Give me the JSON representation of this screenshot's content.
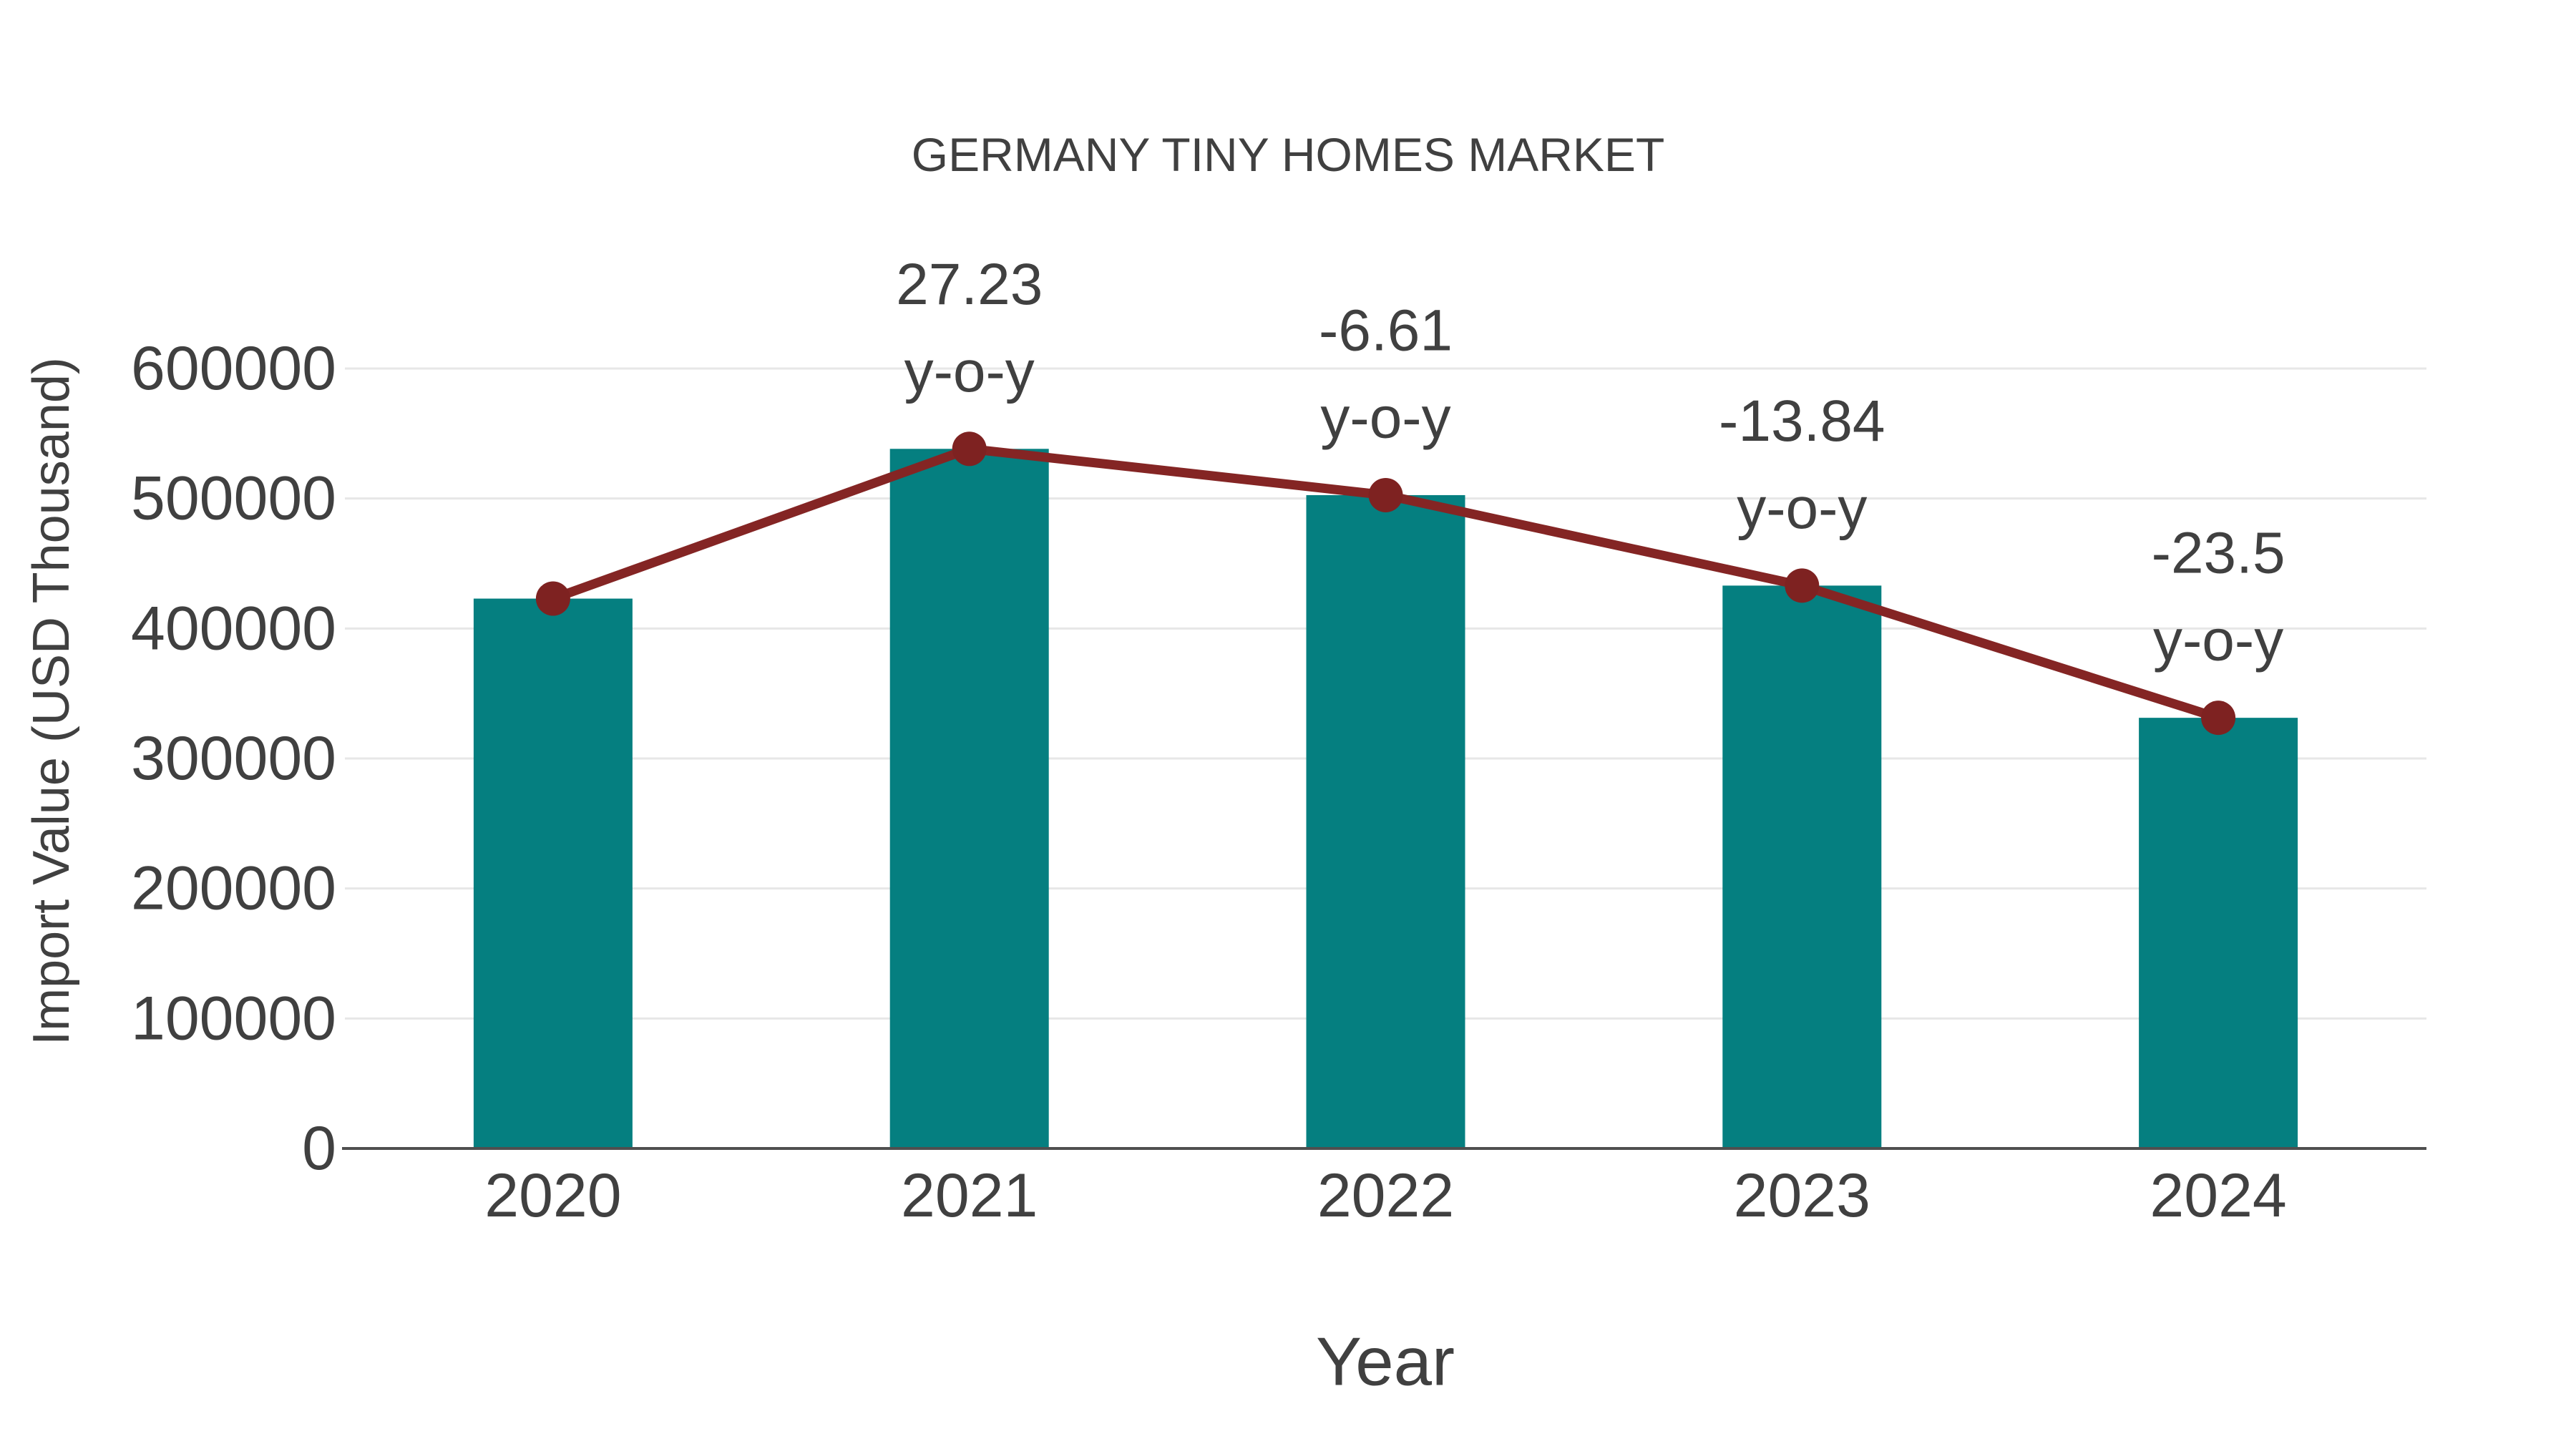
{
  "page": {
    "background": "#FFFFFF"
  },
  "chart_data": {
    "type": "bar",
    "subtype": "bar with overlaid trend line and point markers",
    "title": "GERMANY TINY HOMES MARKET",
    "xlabel": "Year",
    "ylabel": "Import Value (USD Thousand)",
    "categories": [
      "2020",
      "2021",
      "2022",
      "2023",
      "2024"
    ],
    "series": [
      {
        "name": "Import Value (USD Thousand)",
        "type": "bar",
        "values": [
          423000,
          538200,
          502600,
          433000,
          331300
        ]
      },
      {
        "name": "y-o-y change",
        "type": "line",
        "values": [
          null,
          27.23,
          -6.61,
          -13.84,
          -23.5
        ]
      }
    ],
    "point_labels": [
      null,
      "27.23",
      "-6.61",
      "-13.84",
      "-23.5"
    ],
    "point_label_suffix": "y-o-y",
    "yticks": [
      "0",
      "100000",
      "200000",
      "300000",
      "400000",
      "500000",
      "600000"
    ],
    "ylim": [
      0,
      600000
    ],
    "grid": "horizontal",
    "legend_position": "none",
    "colors": {
      "bar": "#057F80",
      "line": "#842524",
      "marker": "#7E2221",
      "grid": "#E7E7E7",
      "axis": "#4F4F4F",
      "text": "#404040",
      "title": "#414141"
    }
  }
}
